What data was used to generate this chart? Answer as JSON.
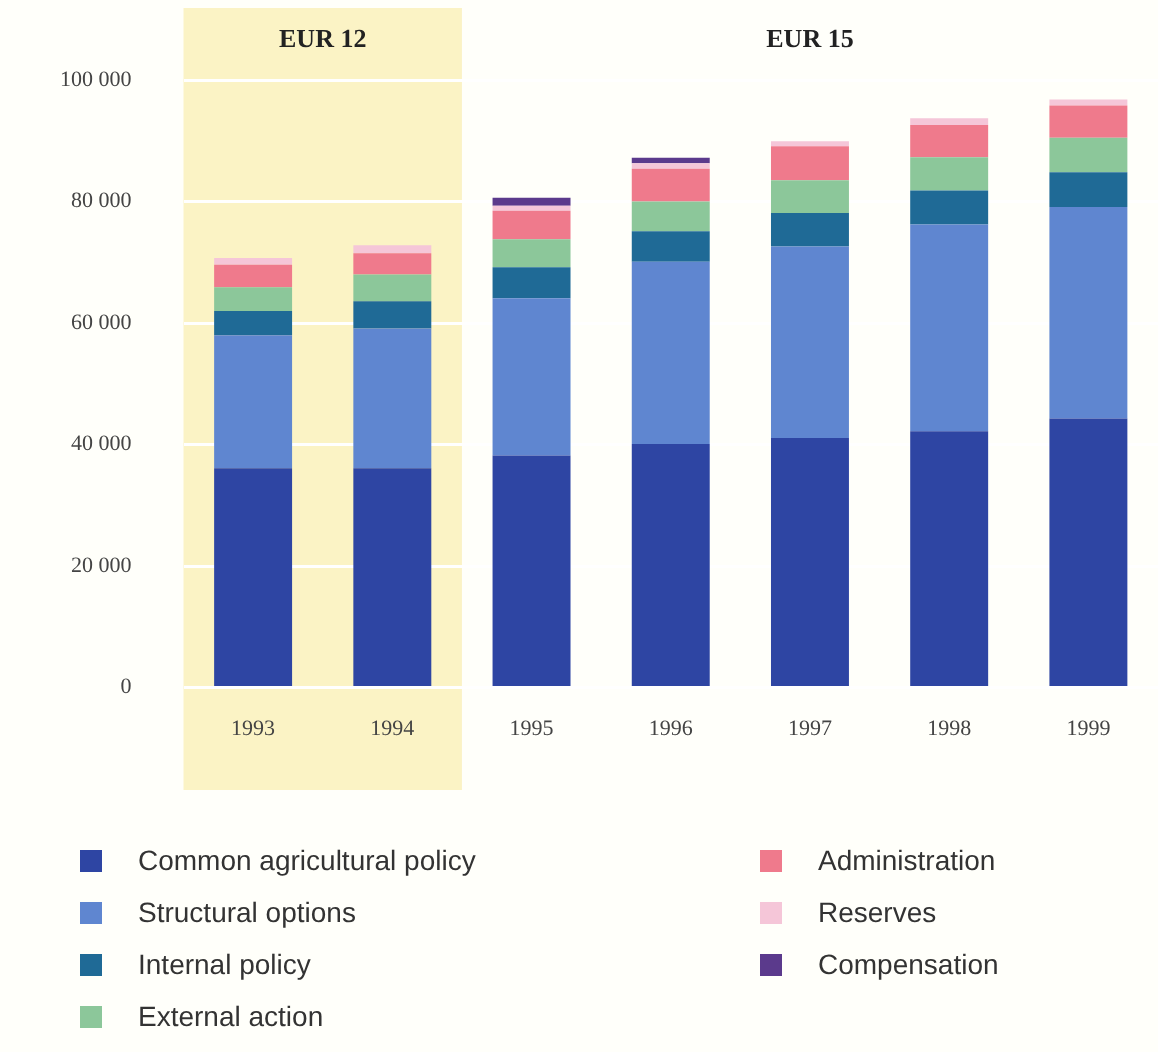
{
  "chart_data": {
    "type": "bar",
    "stacked": true,
    "categories": [
      "1993",
      "1994",
      "1995",
      "1996",
      "1997",
      "1998",
      "1999"
    ],
    "series": [
      {
        "name": "Common agricultural policy",
        "color": "#2e45a3",
        "values": [
          36100,
          36100,
          38200,
          40100,
          41100,
          42200,
          44300
        ]
      },
      {
        "name": "Structural options",
        "color": "#5f86d0",
        "values": [
          21900,
          23000,
          25900,
          30000,
          31500,
          34000,
          34800
        ]
      },
      {
        "name": "Internal policy",
        "color": "#1f6a96",
        "values": [
          4000,
          4500,
          5100,
          5000,
          5500,
          5600,
          5700
        ]
      },
      {
        "name": "External action",
        "color": "#8cc79a",
        "values": [
          3900,
          4400,
          4600,
          4900,
          5400,
          5500,
          5700
        ]
      },
      {
        "name": "Administration",
        "color": "#ef7a8c",
        "values": [
          3700,
          3500,
          4700,
          5400,
          5600,
          5300,
          5300
        ]
      },
      {
        "name": "Reserves",
        "color": "#f5c6d8",
        "values": [
          1100,
          1300,
          800,
          900,
          800,
          1100,
          1000
        ]
      },
      {
        "name": "Compensation",
        "color": "#5b3a8c",
        "values": [
          0,
          0,
          1300,
          900,
          0,
          0,
          0
        ]
      }
    ],
    "ylim": [
      0,
      100000
    ],
    "yticks": [
      0,
      {
        "value": 20000,
        "label": "20 000"
      },
      {
        "value": 40000,
        "label": "40 000"
      },
      {
        "value": 60000,
        "label": "60 000"
      },
      {
        "value": 80000,
        "label": "80 000"
      },
      {
        "value": 100000,
        "label": "100 000"
      }
    ],
    "grid": "y",
    "legend": "bottom",
    "bands": [
      {
        "axis": "x",
        "from": "1993",
        "to": "1994",
        "label": "EUR 12",
        "color": "#fbf3c5"
      }
    ],
    "annotations": [
      "EUR 15"
    ]
  }
}
